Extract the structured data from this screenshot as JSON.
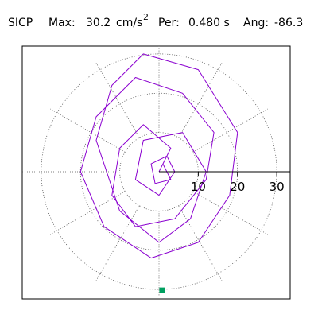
{
  "header": {
    "station": "SICP",
    "max_label": "Max:",
    "max_value": "30.2",
    "unit": "cm/s",
    "unit_exp": "2",
    "per_label": "Per:",
    "per_value": "0.480 s",
    "ang_label": "Ang:",
    "ang_value": "-86.3"
  },
  "chart_data": {
    "type": "scatter",
    "title": "",
    "xlabel": "",
    "ylabel": "",
    "r_ticks": [
      10,
      20,
      30
    ],
    "r_tick_labels": [
      "10",
      "20",
      "30"
    ],
    "r_max": 32,
    "grid": true,
    "series": [
      {
        "line_color": "#8b00d0",
        "points": [
          [
            0,
            0
          ],
          [
            3,
            6
          ],
          [
            -4,
            12
          ],
          [
            -10,
            6
          ],
          [
            -12,
            -6
          ],
          [
            -6,
            -14
          ],
          [
            4,
            -12
          ],
          [
            12,
            -2
          ],
          [
            14,
            10
          ],
          [
            6,
            20
          ],
          [
            -6,
            24
          ],
          [
            -16,
            14
          ],
          [
            -20,
            0
          ],
          [
            -14,
            -14
          ],
          [
            -2,
            -22
          ],
          [
            10,
            -18
          ],
          [
            18,
            -6
          ],
          [
            20,
            10
          ],
          [
            10,
            26
          ],
          [
            -4,
            30
          ],
          [
            -12,
            22
          ],
          [
            -16,
            8
          ],
          [
            -10,
            -10
          ],
          [
            0,
            -18
          ],
          [
            8,
            -12
          ],
          [
            12,
            0
          ],
          [
            6,
            10
          ],
          [
            -4,
            8
          ],
          [
            -6,
            -2
          ],
          [
            0,
            -6
          ],
          [
            4,
            0
          ],
          [
            2,
            4
          ],
          [
            -2,
            2
          ],
          [
            -1,
            -3
          ],
          [
            3,
            -2
          ],
          [
            1,
            2
          ]
        ]
      }
    ],
    "marker": {
      "x": 0.8,
      "y": -30.2,
      "color": "#00a060",
      "label": "max"
    },
    "max_accel": 30.2,
    "period_s": 0.48,
    "angle_deg": -86.3
  }
}
